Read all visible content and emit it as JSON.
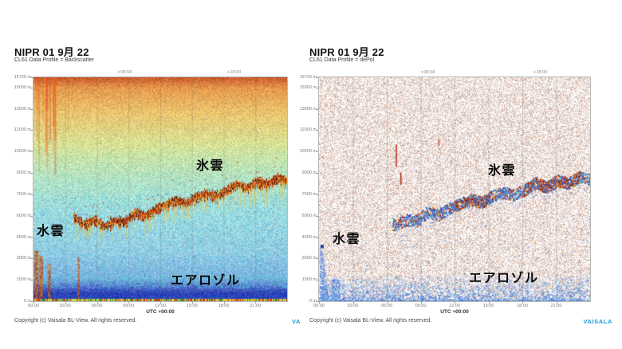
{
  "page": {
    "background": "#ffffff"
  },
  "branding": {
    "copyright": "Copyright (c) Vaisala BL-View. All rights reserved.",
    "logo_left_partial": "VA",
    "logo_right": "VAISALA",
    "logo_color": "#1c9ad6"
  },
  "axis": {
    "xlabel": "UTC +00:00",
    "x_ticks": [
      "00:00",
      "03:00",
      "06:00",
      "09:00",
      "12:00",
      "15:00",
      "18:00",
      "21:00"
    ],
    "x_tick_hours": [
      0,
      3,
      6,
      9,
      12,
      15,
      18,
      21
    ],
    "x_range_hours": [
      0,
      24
    ],
    "y_ticks": [
      "15720 m",
      "15000 m",
      "13500 m",
      "12000 m",
      "10500 m",
      "9000 m",
      "7500 m",
      "6000 m",
      "4500 m",
      "3000 m",
      "1500 m",
      "0 m"
    ],
    "y_tick_heights_m": [
      15720,
      15000,
      13500,
      12000,
      10500,
      9000,
      7500,
      6000,
      4500,
      3000,
      1500,
      0
    ]
  },
  "panels": [
    {
      "title": "NIPR 01 9月 22",
      "subtitle": "CL61 Data Profile = Backscatter",
      "sun_markers": [
        {
          "icon": "sun-icon",
          "time": "08:58"
        },
        {
          "icon": "sun-icon",
          "time": "18:00"
        }
      ],
      "annotations": [
        {
          "text": "水雲"
        },
        {
          "text": "氷雲"
        },
        {
          "text": "エアロゾル"
        }
      ]
    },
    {
      "title": "NIPR 01 9月 22",
      "subtitle": "CL61 Data Profile = dePol",
      "sun_markers": [
        {
          "icon": "sun-icon",
          "time": "08:58"
        },
        {
          "icon": "sun-icon",
          "time": "18:00"
        }
      ],
      "annotations": [
        {
          "text": "水雲"
        },
        {
          "text": "氷雲"
        },
        {
          "text": "エアロゾル"
        }
      ]
    }
  ],
  "chart_data": [
    {
      "type": "heatmap",
      "title": "NIPR 01 9月 22",
      "subtitle": "CL61 Data Profile = Backscatter",
      "xlabel": "UTC +00:00",
      "x_ticks": [
        "00:00",
        "03:00",
        "06:00",
        "09:00",
        "12:00",
        "15:00",
        "18:00",
        "21:00"
      ],
      "x_range_hours": [
        0,
        24
      ],
      "y_ticks": [
        "15720 m",
        "15000 m",
        "13500 m",
        "12000 m",
        "10500 m",
        "9000 m",
        "7500 m",
        "6000 m",
        "4500 m",
        "3000 m",
        "1500 m",
        "0 m"
      ],
      "y_range_m": [
        0,
        15720
      ],
      "sun_markers": [
        "08:58",
        "18:00"
      ],
      "grid": "vertical lines every 3 h",
      "annotations": [
        {
          "text": "水雲",
          "meaning": "water cloud",
          "time_h": [
            0,
            1.5
          ],
          "altitude_m": [
            0,
            3500
          ],
          "signal": "very strong backscatter (red/orange columns)"
        },
        {
          "text": "氷雲",
          "meaning": "ice cloud",
          "time_h": [
            4,
            24
          ],
          "altitude_m": [
            6000,
            9000
          ],
          "signal": "strong undulating backscatter band (dark red/orange) with yellow fall streaks, rising toward ~9 km"
        },
        {
          "text": "エアロゾル",
          "meaning": "aerosol",
          "time_h": [
            0,
            24
          ],
          "altitude_m": [
            0,
            1200
          ],
          "signal": "boundary-layer aerosol: dark blue band with cyan/green wisps; thin rainbow strip at surface"
        }
      ],
      "background_texture": "noise gradient: orange at top, yellow-green mid, pale cyan-blue low; red vertical noise streaks 00:00-03:00 above 9 km"
    },
    {
      "type": "heatmap",
      "title": "NIPR 01 9月 22",
      "subtitle": "CL61 Data Profile = dePol",
      "xlabel": "UTC +00:00",
      "x_ticks": [
        "00:00",
        "03:00",
        "06:00",
        "09:00",
        "12:00",
        "15:00",
        "18:00",
        "21:00"
      ],
      "x_range_hours": [
        0,
        24
      ],
      "y_ticks": [
        "15720 m",
        "15000 m",
        "13500 m",
        "12000 m",
        "10500 m",
        "9000 m",
        "7500 m",
        "6000 m",
        "4500 m",
        "3000 m",
        "1500 m",
        "0 m"
      ],
      "y_range_m": [
        0,
        15720
      ],
      "sun_markers": [
        "08:58",
        "18:00"
      ],
      "grid": "vertical lines every 3 h",
      "annotations": [
        {
          "text": "水雲",
          "meaning": "water cloud",
          "time_h": [
            0,
            1.5
          ],
          "altitude_m": [
            0,
            3500
          ],
          "signal": "low depolarization: blue/white column near surface"
        },
        {
          "text": "氷雲",
          "meaning": "ice cloud",
          "time_h": [
            6,
            24
          ],
          "altitude_m": [
            6000,
            9000
          ],
          "signal": "high depolarization clusters: red/dark-red clumps mixed with blue/cyan dots along cloud band"
        },
        {
          "text": "エアロゾル",
          "meaning": "aerosol",
          "time_h": [
            0,
            24
          ],
          "altitude_m": [
            0,
            1200
          ],
          "signal": "blue speckled layer near surface"
        }
      ],
      "background_texture": "white with pink-beige speckle noise; sparse red vertical dashes ~07:00 at 8-11 km"
    }
  ]
}
